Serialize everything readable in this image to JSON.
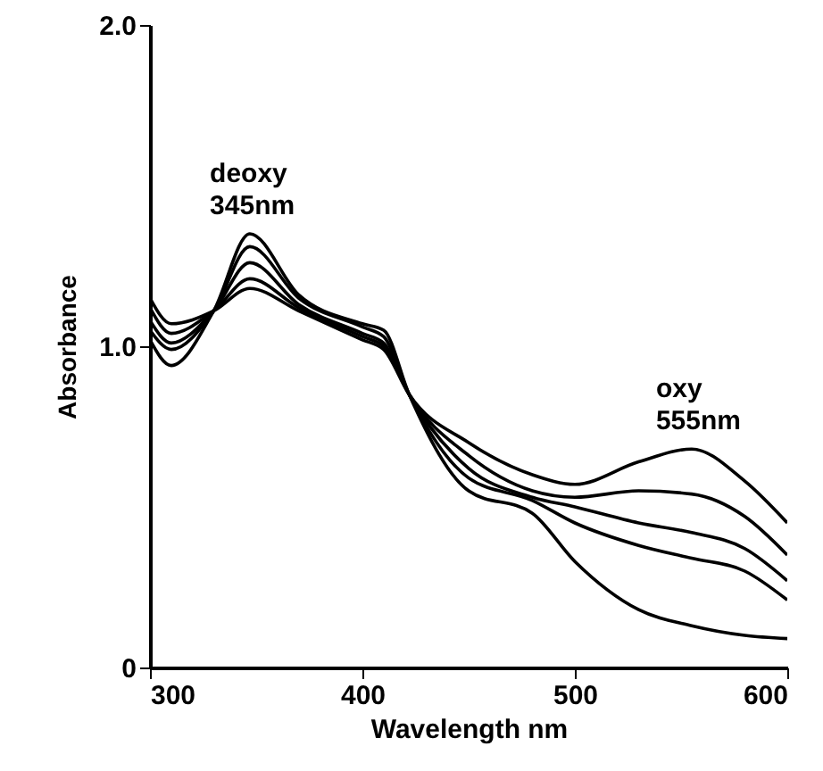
{
  "chart_data": {
    "type": "line",
    "xlabel": "Wavelength nm",
    "ylabel": "Absorbance",
    "x": [
      300,
      310,
      330,
      347,
      370,
      400,
      410,
      422,
      450,
      480,
      500,
      530,
      555,
      580,
      600
    ],
    "series": [
      {
        "color": "#000000",
        "values": [
          1.02,
          0.94,
          1.11,
          1.35,
          1.16,
          1.07,
          1.05,
          0.85,
          0.55,
          0.48,
          0.33,
          0.18,
          0.13,
          0.1,
          0.09
        ]
      },
      {
        "color": "#000000",
        "values": [
          1.05,
          0.99,
          1.11,
          1.31,
          1.15,
          1.06,
          1.03,
          0.85,
          0.59,
          0.52,
          0.45,
          0.38,
          0.34,
          0.3,
          0.21
        ]
      },
      {
        "color": "#000000",
        "values": [
          1.08,
          1.01,
          1.11,
          1.26,
          1.13,
          1.04,
          1.01,
          0.85,
          0.62,
          0.53,
          0.5,
          0.45,
          0.42,
          0.37,
          0.27
        ]
      },
      {
        "color": "#000000",
        "values": [
          1.12,
          1.04,
          1.11,
          1.21,
          1.12,
          1.03,
          1.0,
          0.85,
          0.66,
          0.55,
          0.53,
          0.55,
          0.54,
          0.47,
          0.35
        ]
      },
      {
        "color": "#000000",
        "values": [
          1.15,
          1.07,
          1.11,
          1.18,
          1.11,
          1.02,
          0.99,
          0.85,
          0.7,
          0.6,
          0.57,
          0.64,
          0.68,
          0.58,
          0.45
        ]
      }
    ],
    "xlim": [
      300,
      600
    ],
    "ylim": [
      0,
      2
    ],
    "xticks": [
      300,
      400,
      500,
      600
    ],
    "yticks": [
      {
        "value": 0,
        "label": "0"
      },
      {
        "value": 1,
        "label": "1.0"
      },
      {
        "value": 2,
        "label": "2.0"
      }
    ],
    "annotations": [
      {
        "text": "deoxy\n345nm",
        "x": 345,
        "y": 1.35
      },
      {
        "text": "oxy\n555nm",
        "x": 555,
        "y": 0.68
      }
    ],
    "grid": false,
    "marker": "none",
    "line_style": "solid"
  }
}
